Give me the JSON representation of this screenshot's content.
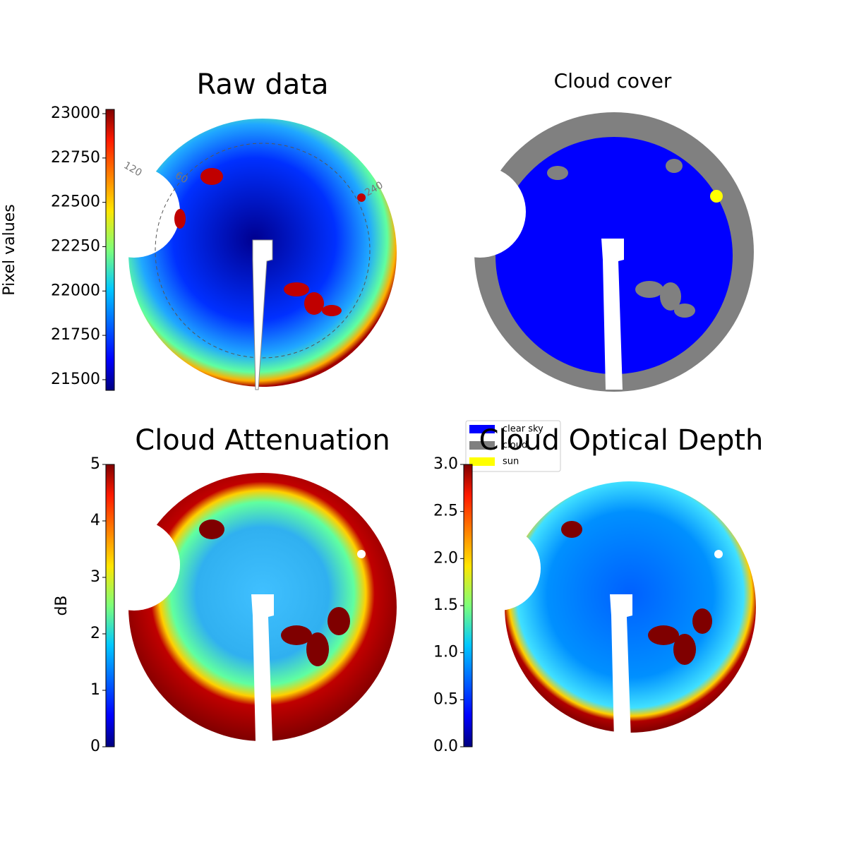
{
  "chart_data": [
    {
      "type": "image",
      "title": "Raw data",
      "colormap": "jet",
      "colorbar": {
        "label": "Pixel values",
        "lim": [
          21440,
          23024
        ],
        "ticks": [
          21500,
          21750,
          22000,
          22250,
          22500,
          22750,
          23000
        ]
      },
      "annotations": [
        "120",
        "60",
        "240"
      ]
    },
    {
      "type": "classification",
      "title": "Cloud cover",
      "legend": [
        {
          "name": "clear sky",
          "color": "#0000ff"
        },
        {
          "name": "cloud",
          "color": "#808080"
        },
        {
          "name": "sun",
          "color": "#ffff00"
        }
      ]
    },
    {
      "type": "image",
      "title": "Cloud Attenuation",
      "colormap": "jet",
      "colorbar": {
        "label": "dB",
        "lim": [
          0,
          5
        ],
        "ticks": [
          0,
          1,
          2,
          3,
          4,
          5
        ]
      }
    },
    {
      "type": "image",
      "title": "Cloud Optical Depth",
      "colormap": "jet",
      "colorbar": {
        "lim": [
          0,
          3
        ],
        "ticks": [
          {
            "value": 0,
            "label": "0.0"
          },
          0.5,
          {
            "value": 1,
            "label": "1.0"
          },
          1.5,
          {
            "value": 2,
            "label": "2.0"
          },
          2.5,
          {
            "value": 3,
            "label": "3.0"
          }
        ]
      }
    }
  ]
}
